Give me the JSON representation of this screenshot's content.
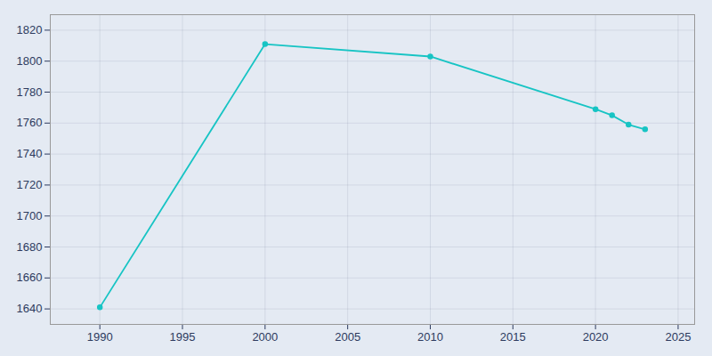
{
  "chart_data": {
    "type": "line",
    "x": [
      1990,
      2000,
      2010,
      2020,
      2021,
      2022,
      2023
    ],
    "values": [
      1641,
      1811,
      1803,
      1769,
      1765,
      1759,
      1756
    ],
    "color": "#17c4c4",
    "marker": "circle",
    "xlim": [
      1987,
      2026
    ],
    "ylim": [
      1630,
      1830
    ],
    "xticks": [
      1990,
      1995,
      2000,
      2005,
      2010,
      2015,
      2020,
      2025
    ],
    "yticks": [
      1640,
      1660,
      1680,
      1700,
      1720,
      1740,
      1760,
      1780,
      1800,
      1820
    ],
    "grid": true
  }
}
